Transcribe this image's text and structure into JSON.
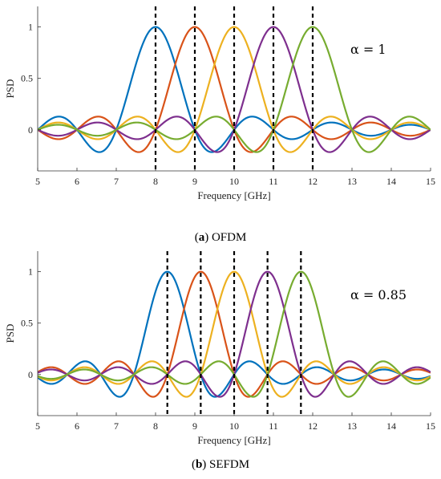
{
  "chart_data": [
    {
      "type": "line",
      "xlabel": "Frequency [GHz]",
      "ylabel": "PSD",
      "xlim": [
        5,
        15
      ],
      "ylim": [
        -0.4,
        1.2
      ],
      "xticks": [
        "5",
        "6",
        "7",
        "8",
        "9",
        "10",
        "11",
        "12",
        "13",
        "14",
        "15"
      ],
      "yticks": [
        "0",
        "0.5",
        "1"
      ],
      "annotation": "α = 1",
      "alpha": 1,
      "subcarrier_centers": [
        8,
        9,
        10,
        11,
        12
      ],
      "series": [
        {
          "color": "#0072BD",
          "center": 8
        },
        {
          "color": "#D95319",
          "center": 9
        },
        {
          "color": "#EDB120",
          "center": 10
        },
        {
          "color": "#7E2F8E",
          "center": 11
        },
        {
          "color": "#77AC30",
          "center": 12
        }
      ],
      "caption_label": "a",
      "caption_text": "OFDM",
      "grid": false
    },
    {
      "type": "line",
      "xlabel": "Frequency [GHz]",
      "ylabel": "PSD",
      "xlim": [
        5,
        15
      ],
      "ylim": [
        -0.4,
        1.2
      ],
      "xticks": [
        "5",
        "6",
        "7",
        "8",
        "9",
        "10",
        "11",
        "12",
        "13",
        "14",
        "15"
      ],
      "yticks": [
        "0",
        "0.5",
        "1"
      ],
      "annotation": "α = 0.85",
      "alpha": 0.85,
      "subcarrier_centers": [
        8.3,
        9.15,
        10,
        10.85,
        11.7
      ],
      "series": [
        {
          "color": "#0072BD",
          "center": 8.3
        },
        {
          "color": "#D95319",
          "center": 9.15
        },
        {
          "color": "#EDB120",
          "center": 10
        },
        {
          "color": "#7E2F8E",
          "center": 10.85
        },
        {
          "color": "#77AC30",
          "center": 11.7
        }
      ],
      "caption_label": "b",
      "caption_text": "SEFDM",
      "grid": false
    }
  ]
}
